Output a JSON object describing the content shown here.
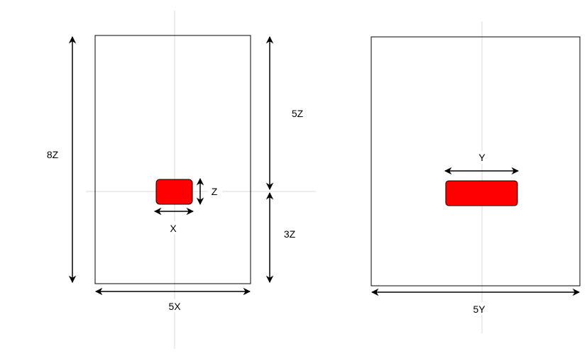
{
  "colors": {
    "block": "#ff0000",
    "guide": "#d9d9d9",
    "line": "#000000"
  },
  "left_view": {
    "height_label": "8Z",
    "upper_label": "5Z",
    "lower_label": "3Z",
    "block_height_label": "Z",
    "block_width_label": "X",
    "width_label": "5X"
  },
  "right_view": {
    "block_width_label": "Y",
    "width_label": "5Y"
  }
}
